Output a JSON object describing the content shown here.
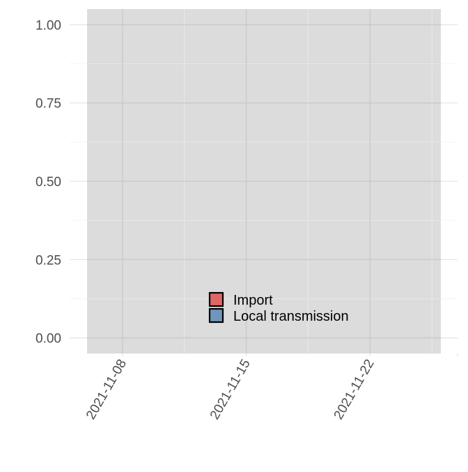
{
  "chart_data": {
    "type": "bar",
    "title": "",
    "xlabel": "",
    "ylabel": "",
    "x_type": "date",
    "xlim": [
      "2021-11-06",
      "2021-11-26"
    ],
    "ylim": [
      -0.05,
      1.05
    ],
    "x_ticks": [
      "2021-11-08",
      "2021-11-15",
      "2021-11-22"
    ],
    "x_tick_labels": [
      "2021-11-08",
      "2021-11-15",
      "2021-11-22"
    ],
    "y_ticks": [
      0,
      0.25,
      0.5,
      0.75,
      1
    ],
    "y_tick_labels": [
      "0.00",
      "0.25",
      "0.50",
      "0.75",
      "1.00"
    ],
    "grid": true,
    "legend_position": "inside-bottom-center",
    "series": [
      {
        "name": "Import",
        "color": "#e06666",
        "values": []
      },
      {
        "name": "Local transmission",
        "color": "#6f95bd",
        "values": []
      }
    ],
    "colors": {
      "panel_background": "#dcdcdc",
      "major_grid": "#c8c8c8",
      "minor_grid": "#ececec",
      "axis_text": "#4d4d4d"
    }
  }
}
